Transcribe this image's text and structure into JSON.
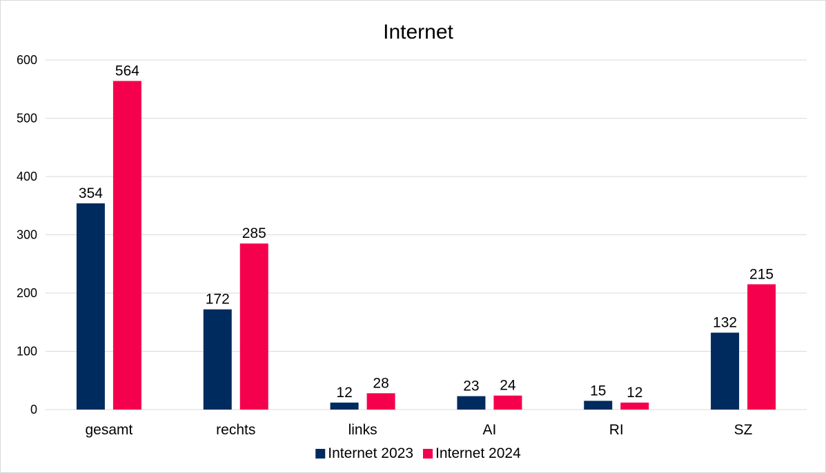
{
  "chart_data": {
    "type": "bar",
    "title": "Internet",
    "xlabel": "",
    "ylabel": "",
    "categories": [
      "gesamt",
      "rechts",
      "links",
      "AI",
      "RI",
      "SZ"
    ],
    "series": [
      {
        "name": "Internet 2023",
        "color": "#002b5f",
        "values": [
          354,
          172,
          12,
          23,
          15,
          132
        ]
      },
      {
        "name": "Internet 2024",
        "color": "#f5004d",
        "values": [
          564,
          285,
          28,
          24,
          12,
          215
        ]
      }
    ],
    "ylim": [
      0,
      600
    ],
    "yticks": [
      0,
      100,
      200,
      300,
      400,
      500,
      600
    ],
    "grid": true,
    "legend": "bottom",
    "data_labels": true
  }
}
